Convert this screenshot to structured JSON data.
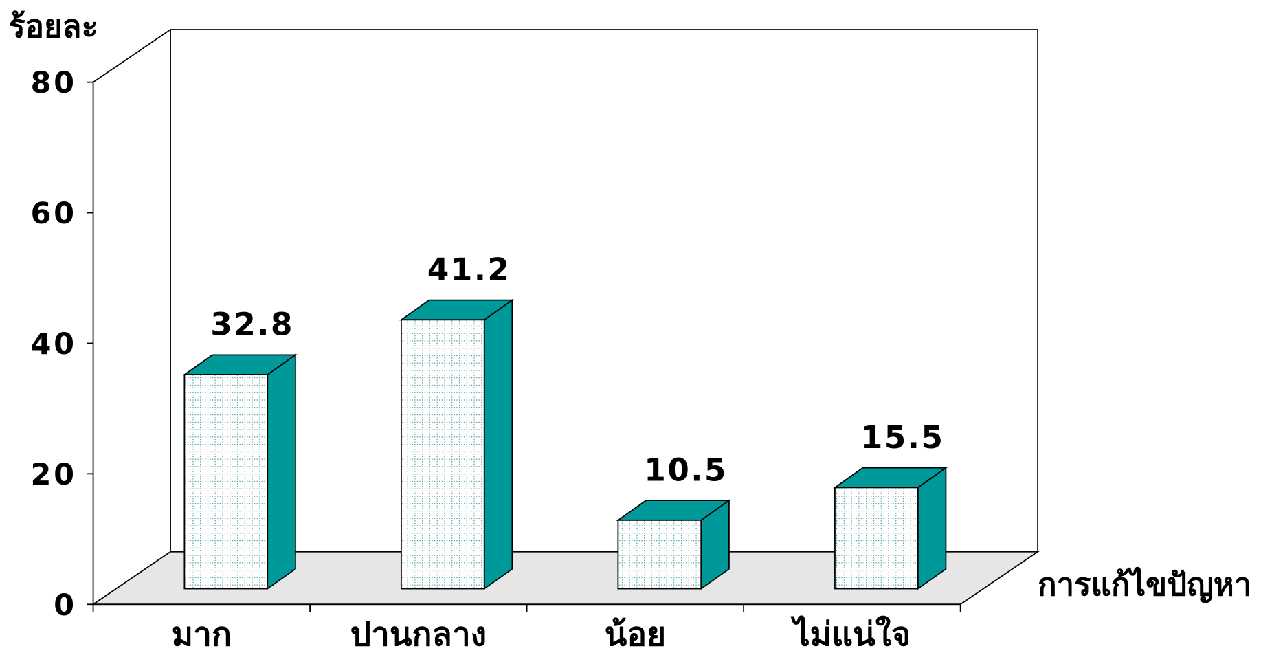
{
  "chart_data": {
    "type": "bar3d",
    "y_label": "ร้อยละ",
    "x_label": "การแก้ไขปัญหา",
    "categories": [
      "มาก",
      "ปานกลาง",
      "น้อย",
      "ไม่แน่ใจ"
    ],
    "values": [
      32.8,
      41.2,
      10.5,
      15.5
    ],
    "color": "#009999",
    "ylim": [
      0,
      80
    ],
    "yticks": [
      0,
      20,
      40,
      60,
      80
    ],
    "grid": false
  }
}
